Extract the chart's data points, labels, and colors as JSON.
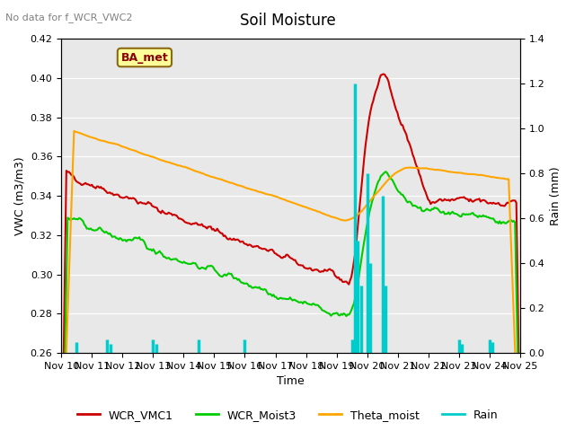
{
  "title": "Soil Moisture",
  "top_left_text": "No data for f_WCR_VWC2",
  "annotation_text": "BA_met",
  "xlabel": "Time",
  "ylabel_left": "VWC (m3/m3)",
  "ylabel_right": "Rain (mm)",
  "ylim_left": [
    0.26,
    0.42
  ],
  "ylim_right": [
    0.0,
    1.4
  ],
  "yticks_left": [
    0.26,
    0.28,
    0.3,
    0.32,
    0.34,
    0.36,
    0.38,
    0.4,
    0.42
  ],
  "yticks_right": [
    0.0,
    0.2,
    0.4,
    0.6,
    0.8,
    1.0,
    1.2,
    1.4
  ],
  "background_color": "#e8e8e8",
  "line_colors": {
    "WCR_VMC1": "#cc0000",
    "WCR_Moist3": "#00cc00",
    "Theta_moist": "#ffa500",
    "Rain": "#00cccc"
  },
  "xtick_labels": [
    "Nov 10",
    "Nov 11",
    "Nov 12",
    "Nov 13",
    "Nov 14",
    "Nov 15",
    "Nov 16",
    "Nov 17",
    "Nov 18",
    "Nov 19",
    "Nov 20",
    "Nov 21",
    "Nov 22",
    "Nov 23",
    "Nov 24",
    "Nov 25"
  ],
  "rain_times": [
    0.5,
    1.5,
    1.6,
    3.0,
    3.1,
    4.5,
    6.0,
    9.5,
    9.6,
    9.7,
    9.8,
    10.0,
    10.1,
    10.5,
    10.6,
    13.0,
    13.1,
    14.0,
    14.1
  ],
  "rain_values": [
    0.05,
    0.06,
    0.04,
    0.06,
    0.04,
    0.06,
    0.06,
    0.06,
    1.2,
    0.5,
    0.3,
    0.8,
    0.4,
    0.7,
    0.3,
    0.06,
    0.04,
    0.06,
    0.05
  ]
}
